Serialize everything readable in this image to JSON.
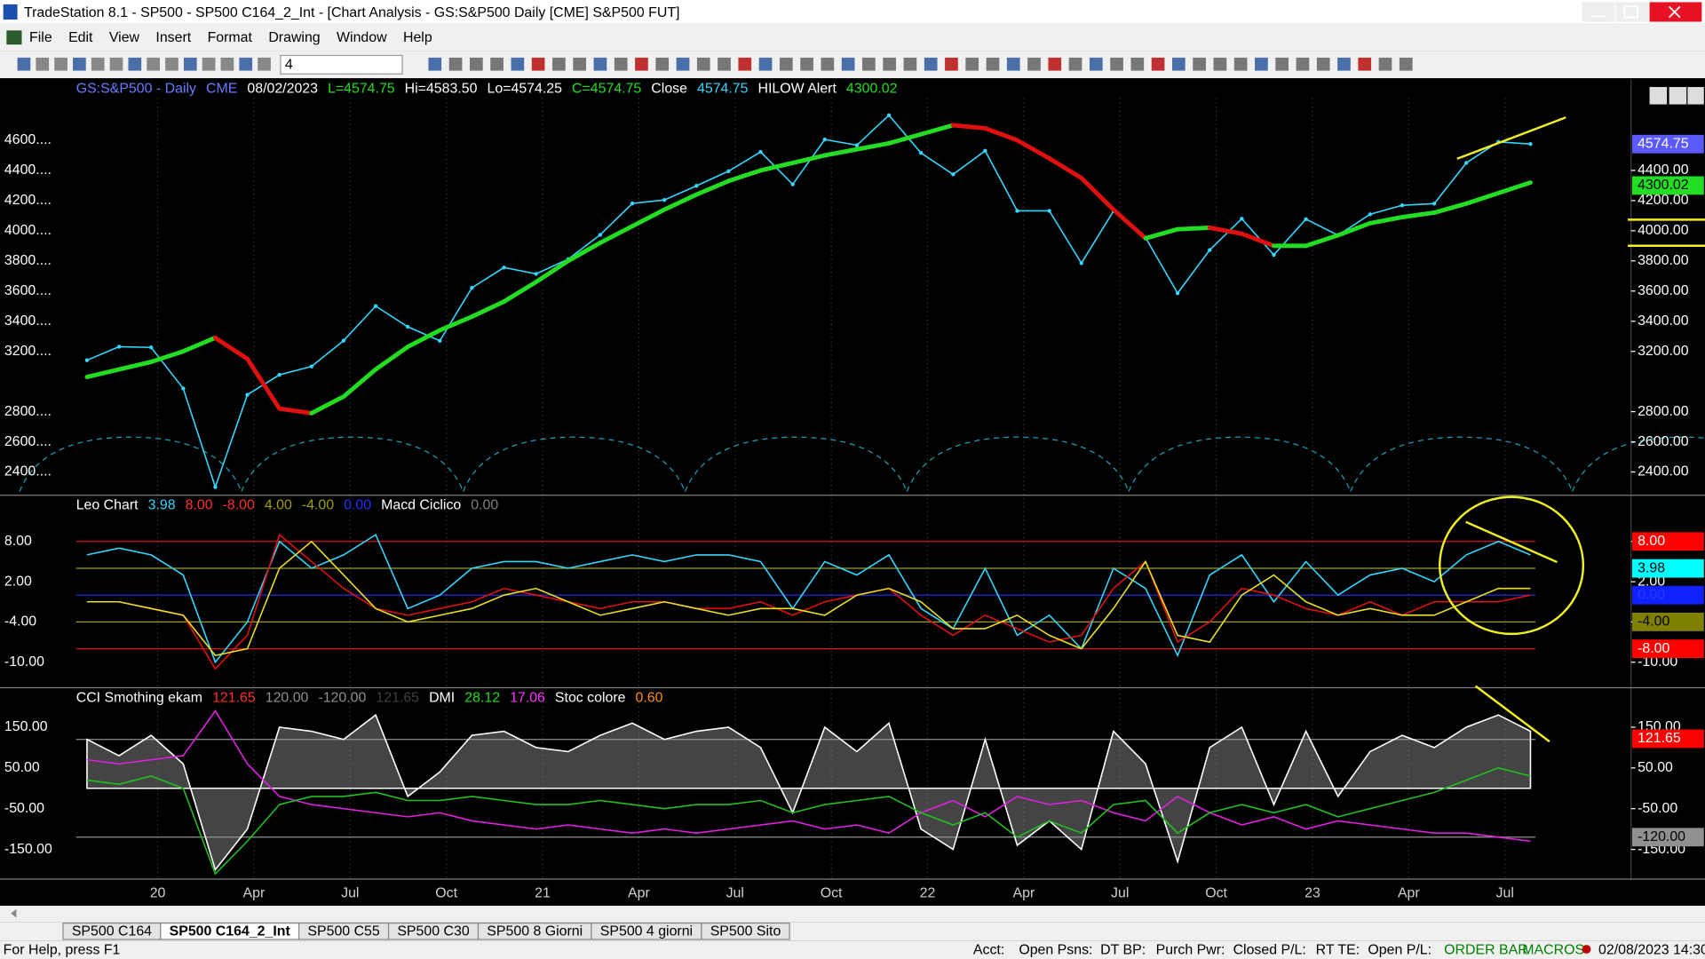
{
  "window": {
    "title": "TradeStation 8.1 - SP500 - SP500 C164_2_Int - [Chart Analysis - GS:S&P500  Daily  [CME] S&P500 FUT]",
    "menu": [
      "File",
      "Edit",
      "View",
      "Insert",
      "Format",
      "Drawing",
      "Window",
      "Help"
    ],
    "interval_box": "4",
    "tabs": [
      "SP500 C164",
      "SP500 C164_2_Int",
      "SP500 C55",
      "SP500 C30",
      "SP500 8 Giorni",
      "SP500 4 giorni",
      "SP500 Sito"
    ],
    "status": {
      "help": "For Help, press F1",
      "fields": [
        "Acct:",
        "Open Psns:",
        "DT BP:",
        "Purch Pwr:",
        "Closed P/L:",
        "RT TE:",
        "Open P/L:"
      ],
      "order_bar": "ORDER BAR",
      "macros": "MACROS",
      "datetime": "02/08/2023 14:30"
    }
  },
  "x_labels": [
    "20",
    "Apr",
    "Jul",
    "Oct",
    "21",
    "Apr",
    "Jul",
    "Oct",
    "22",
    "Apr",
    "Jul",
    "Oct",
    "23",
    "Apr",
    "Jul"
  ],
  "chart_data": [
    {
      "type": "line",
      "header": [
        {
          "text": "GS:S&P500 - Daily",
          "color": "#6b7bff"
        },
        {
          "text": "CME",
          "color": "#6b7bff"
        },
        {
          "text": "08/02/2023",
          "color": "#ffffff"
        },
        {
          "text": "L=4574.75",
          "color": "#22dd22"
        },
        {
          "text": "Hi=4583.50",
          "color": "#ffffff"
        },
        {
          "text": "Lo=4574.25",
          "color": "#ffffff"
        },
        {
          "text": "C=4574.75",
          "color": "#22dd22"
        },
        {
          "text": "Close",
          "color": "#ffffff"
        },
        {
          "text": "4574.75",
          "color": "#33d6ff"
        },
        {
          "text": "HILOW Alert",
          "color": "#ffffff"
        },
        {
          "text": "4300.02",
          "color": "#22dd22"
        }
      ],
      "ylim": [
        2249,
        5004
      ],
      "yticks": [
        {
          "value": 4600,
          "label": "4600...."
        },
        {
          "value": 4400,
          "label": "4400...."
        },
        {
          "value": 4200,
          "label": "4200...."
        },
        {
          "value": 4000,
          "label": "4000...."
        },
        {
          "value": 3800,
          "label": "3800...."
        },
        {
          "value": 3600,
          "label": "3600...."
        },
        {
          "value": 3400,
          "label": "3400...."
        },
        {
          "value": 3200,
          "label": "3200...."
        },
        {
          "value": 2800,
          "label": "2800...."
        },
        {
          "value": 2600,
          "label": "2600...."
        },
        {
          "value": 2400,
          "label": "2400...."
        }
      ],
      "yticks_right": [
        {
          "value": 4400,
          "label": "4400.00"
        },
        {
          "value": 4200,
          "label": "4200.00"
        },
        {
          "value": 4000,
          "label": "4000.00"
        },
        {
          "value": 3800,
          "label": "3800.00"
        },
        {
          "value": 3600,
          "label": "3600.00"
        },
        {
          "value": 3400,
          "label": "3400.00"
        },
        {
          "value": 3200,
          "label": "3200.00"
        },
        {
          "value": 2800,
          "label": "2800.00"
        },
        {
          "value": 2600,
          "label": "2600.00"
        },
        {
          "value": 2400,
          "label": "2400.00"
        }
      ],
      "series": [
        {
          "color": "#33d6ff",
          "style": "dots",
          "values": [
            3141,
            3231,
            3226,
            2954,
            2300,
            2912,
            3044,
            3100,
            3271,
            3500,
            3363,
            3270,
            3622,
            3756,
            3714,
            3811,
            3973,
            4181,
            4204,
            4298,
            4395,
            4523,
            4308,
            4605,
            4567,
            4766,
            4516,
            4374,
            4530,
            4132,
            4132,
            3785,
            4130,
            3955,
            3586,
            3872,
            4080,
            3840,
            4077,
            3970,
            4109,
            4169,
            4180,
            4450,
            4589,
            4575
          ]
        },
        {
          "color": "#22dd22",
          "down_color": "#e01010",
          "style": "slope",
          "values": [
            3030,
            3080,
            3130,
            3200,
            3290,
            3150,
            2820,
            2790,
            2900,
            3080,
            3230,
            3340,
            3430,
            3530,
            3660,
            3800,
            3920,
            4030,
            4140,
            4240,
            4330,
            4400,
            4450,
            4500,
            4540,
            4580,
            4640,
            4700,
            4680,
            4600,
            4480,
            4350,
            4140,
            3950,
            4010,
            4020,
            3980,
            3900,
            3900,
            3970,
            4050,
            4090,
            4120,
            4180,
            4250,
            4320
          ]
        }
      ],
      "value_boxes": [
        {
          "value": 4574.75,
          "label": "4574.75",
          "color": "#5a5aff",
          "text_color": "#ffffff"
        },
        {
          "value": 4300.02,
          "label": "4300.02",
          "color": "#22dd22",
          "text_color": "#000000"
        }
      ]
    },
    {
      "type": "line",
      "header": [
        {
          "text": "Leo Chart",
          "color": "#ffffff"
        },
        {
          "text": "3.98",
          "color": "#33d6ff"
        },
        {
          "text": "8.00",
          "color": "#ff3030"
        },
        {
          "text": "-8.00",
          "color": "#ff3030"
        },
        {
          "text": "4.00",
          "color": "#a0a000"
        },
        {
          "text": "-4.00",
          "color": "#a0a000"
        },
        {
          "text": "0.00",
          "color": "#2030ff"
        },
        {
          "text": "Macd Ciclico",
          "color": "#ffffff"
        },
        {
          "text": "0.00",
          "color": "#808080"
        }
      ],
      "ylim": [
        -13.73,
        14.81
      ],
      "yticks": [
        {
          "value": 8,
          "label": "8.00"
        },
        {
          "value": 2,
          "label": "2.00"
        },
        {
          "value": -4,
          "label": "-4.00"
        },
        {
          "value": -10,
          "label": "-10.00"
        }
      ],
      "levels": [
        {
          "value": 8,
          "color": "#e01010"
        },
        {
          "value": 4,
          "color": "#a0a000"
        },
        {
          "value": 0,
          "color": "#2030ff"
        },
        {
          "value": -4,
          "color": "#a0a000"
        },
        {
          "value": -8,
          "color": "#e01010"
        }
      ],
      "series": [
        {
          "color": "#33d6ff",
          "values": [
            6,
            7,
            6,
            3,
            -10,
            -4,
            8,
            4,
            6,
            9,
            -2,
            0,
            4,
            5,
            5,
            4,
            5,
            6,
            5,
            6,
            6,
            5,
            -2,
            5,
            3,
            6,
            -2,
            -5,
            4,
            -6,
            -3,
            -8,
            4,
            1,
            -9,
            3,
            6,
            -1,
            5,
            0,
            3,
            4,
            2,
            6,
            8,
            6
          ]
        },
        {
          "color": "#e01010",
          "values": [
            -1,
            -1,
            -2,
            -3,
            -11,
            -6,
            9,
            5,
            1,
            -2,
            -3,
            -2,
            -1,
            1,
            0,
            -1,
            -2,
            -1,
            -1,
            -2,
            -2,
            -1,
            -3,
            -1,
            0,
            1,
            -3,
            -6,
            -3,
            -5,
            -7,
            -6,
            1,
            5,
            -7,
            -4,
            1,
            0,
            -2,
            -3,
            -1,
            -3,
            -1,
            -1,
            -1,
            0
          ]
        },
        {
          "color": "#e8e020",
          "values": [
            -1,
            -1,
            -2,
            -3,
            -9,
            -8,
            4,
            8,
            3,
            -2,
            -4,
            -3,
            -2,
            0,
            1,
            -1,
            -3,
            -2,
            -1,
            -2,
            -3,
            -2,
            -2,
            -3,
            0,
            1,
            -1,
            -5,
            -5,
            -3,
            -6,
            -8,
            -2,
            5,
            -6,
            -7,
            0,
            3,
            -1,
            -3,
            -2,
            -3,
            -3,
            -1,
            1,
            1
          ]
        }
      ],
      "value_boxes": [
        {
          "value": 8,
          "label": "8.00",
          "color": "#ff0000",
          "text_color": "#ffffff"
        },
        {
          "value": 3.98,
          "label": "3.98",
          "color": "#00ffff",
          "text_color": "#000000"
        },
        {
          "value": 0,
          "label": "0.00",
          "color": "#1020ff",
          "text_color": "#2040ff"
        },
        {
          "value": -4,
          "label": "-4.00",
          "color": "#808000",
          "text_color": "#000000"
        },
        {
          "value": -8,
          "label": "-8.00",
          "color": "#ff0000",
          "text_color": "#ffffff"
        }
      ]
    },
    {
      "type": "line",
      "header": [
        {
          "text": "CCI Smothing ekam",
          "color": "#ffffff"
        },
        {
          "text": "121.65",
          "color": "#ff3030"
        },
        {
          "text": "120.00",
          "color": "#909090"
        },
        {
          "text": "-120.00",
          "color": "#909090"
        },
        {
          "text": "121.65",
          "color": "#404040"
        },
        {
          "text": "DMI",
          "color": "#ffffff"
        },
        {
          "text": "28.12",
          "color": "#22dd22"
        },
        {
          "text": "17.06",
          "color": "#ff30ff"
        },
        {
          "text": "Stoc colore",
          "color": "#ffffff"
        },
        {
          "text": "0.60",
          "color": "#ff8c1a"
        }
      ],
      "ylim": [
        -221.6,
        245.6
      ],
      "yticks": [
        {
          "value": 150,
          "label": "150.00"
        },
        {
          "value": 50,
          "label": "50.00"
        },
        {
          "value": -50,
          "label": "-50.00"
        },
        {
          "value": -150,
          "label": "-150.00"
        }
      ],
      "levels": [
        {
          "value": 120,
          "color": "#909090"
        },
        {
          "value": -120,
          "color": "#909090"
        }
      ],
      "series": [
        {
          "color": "#ffffff",
          "style": "area",
          "values": [
            120,
            80,
            130,
            60,
            -200,
            -100,
            150,
            140,
            120,
            180,
            -20,
            40,
            130,
            140,
            100,
            90,
            130,
            160,
            120,
            140,
            150,
            100,
            -60,
            150,
            90,
            160,
            -100,
            -150,
            120,
            -140,
            -80,
            -150,
            140,
            60,
            -180,
            100,
            150,
            -40,
            140,
            -20,
            90,
            130,
            100,
            150,
            180,
            140
          ]
        },
        {
          "color": "#e020e0",
          "values": [
            70,
            60,
            70,
            80,
            190,
            60,
            -20,
            -40,
            -50,
            -60,
            -70,
            -60,
            -80,
            -90,
            -100,
            -90,
            -100,
            -110,
            -100,
            -110,
            -100,
            -90,
            -80,
            -100,
            -90,
            -110,
            -60,
            -30,
            -70,
            -20,
            -40,
            -30,
            -60,
            -80,
            -20,
            -60,
            -90,
            -70,
            -100,
            -80,
            -90,
            -100,
            -110,
            -110,
            -120,
            -130
          ]
        },
        {
          "color": "#20c020",
          "values": [
            20,
            10,
            30,
            0,
            -210,
            -130,
            -40,
            -20,
            -20,
            -10,
            -30,
            -30,
            -20,
            -30,
            -40,
            -40,
            -30,
            -40,
            -50,
            -40,
            -40,
            -30,
            -60,
            -40,
            -30,
            -20,
            -60,
            -90,
            -60,
            -120,
            -80,
            -110,
            -40,
            -30,
            -110,
            -60,
            -40,
            -60,
            -40,
            -70,
            -50,
            -30,
            -10,
            20,
            50,
            30
          ]
        }
      ],
      "value_boxes": [
        {
          "value": 121.65,
          "label": "121.65",
          "color": "#ff0000",
          "text_color": "#ffffff"
        },
        {
          "value": -120,
          "label": "-120.00",
          "color": "#909090",
          "text_color": "#000000"
        }
      ]
    }
  ]
}
